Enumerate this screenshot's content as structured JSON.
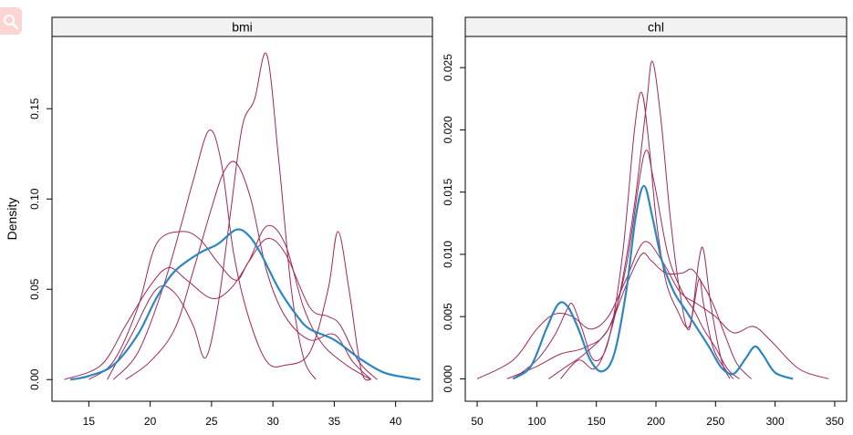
{
  "ylabel": "Density",
  "colors": {
    "observed": "#2e86c1",
    "imputed": "#a0285a",
    "strip_bg": "#f2f2f2",
    "frame": "#000000"
  },
  "chart_data": [
    {
      "type": "line",
      "panel": "bmi",
      "xlim": [
        12,
        43
      ],
      "ylim": [
        -0.012,
        0.19
      ],
      "x_ticks": [
        15,
        20,
        25,
        30,
        35,
        40
      ],
      "y_ticks": [
        0.0,
        0.05,
        0.1,
        0.15
      ],
      "y_tick_labels": [
        "0.00",
        "0.05",
        "0.10",
        "0.15"
      ],
      "observed": [
        [
          13.5,
          0
        ],
        [
          15,
          0.002
        ],
        [
          17,
          0.008
        ],
        [
          19,
          0.025
        ],
        [
          20.5,
          0.045
        ],
        [
          22,
          0.06
        ],
        [
          24,
          0.07
        ],
        [
          25.5,
          0.075
        ],
        [
          27,
          0.083
        ],
        [
          28,
          0.08
        ],
        [
          29,
          0.07
        ],
        [
          30.5,
          0.05
        ],
        [
          32,
          0.035
        ],
        [
          33,
          0.028
        ],
        [
          35,
          0.022
        ],
        [
          37,
          0.012
        ],
        [
          39,
          0.004
        ],
        [
          41,
          0.001
        ],
        [
          42,
          0
        ]
      ],
      "imputed": [
        [
          [
            13,
            0
          ],
          [
            16,
            0.008
          ],
          [
            18,
            0.03
          ],
          [
            20,
            0.052
          ],
          [
            21.5,
            0.062
          ],
          [
            23,
            0.055
          ],
          [
            25,
            0.045
          ],
          [
            26.5,
            0.05
          ],
          [
            28,
            0.065
          ],
          [
            29.5,
            0.085
          ],
          [
            31,
            0.075
          ],
          [
            32.5,
            0.04
          ],
          [
            34,
            0.02
          ],
          [
            36,
            0.008
          ],
          [
            38,
            0
          ]
        ],
        [
          [
            16.5,
            0
          ],
          [
            18.5,
            0.025
          ],
          [
            20.5,
            0.05
          ],
          [
            22,
            0.048
          ],
          [
            23.5,
            0.03
          ],
          [
            24.5,
            0.012
          ],
          [
            25.5,
            0.04
          ],
          [
            26.5,
            0.09
          ],
          [
            27.5,
            0.14
          ],
          [
            28.5,
            0.155
          ],
          [
            29.5,
            0.18
          ],
          [
            30.5,
            0.12
          ],
          [
            31.5,
            0.05
          ],
          [
            32.5,
            0.012
          ],
          [
            33.5,
            0
          ]
        ],
        [
          [
            15,
            0
          ],
          [
            17,
            0.01
          ],
          [
            19,
            0.04
          ],
          [
            20.5,
            0.075
          ],
          [
            22.5,
            0.082
          ],
          [
            24,
            0.078
          ],
          [
            25.5,
            0.065
          ],
          [
            27,
            0.055
          ],
          [
            28,
            0.065
          ],
          [
            29.5,
            0.078
          ],
          [
            31,
            0.07
          ],
          [
            33,
            0.04
          ],
          [
            34.5,
            0.035
          ],
          [
            35.5,
            0.03
          ],
          [
            37,
            0.01
          ],
          [
            38.5,
            0
          ]
        ],
        [
          [
            17,
            0
          ],
          [
            19,
            0.015
          ],
          [
            21,
            0.05
          ],
          [
            22.5,
            0.085
          ],
          [
            23.5,
            0.11
          ],
          [
            24.8,
            0.138
          ],
          [
            25.8,
            0.12
          ],
          [
            26.8,
            0.07
          ],
          [
            28,
            0.035
          ],
          [
            29.5,
            0.01
          ],
          [
            31,
            0.008
          ],
          [
            33,
            0.015
          ],
          [
            34.5,
            0.05
          ],
          [
            35.3,
            0.082
          ],
          [
            36.2,
            0.05
          ],
          [
            37.2,
            0.005
          ],
          [
            38,
            0
          ]
        ],
        [
          [
            18,
            0
          ],
          [
            20,
            0.01
          ],
          [
            22,
            0.028
          ],
          [
            23.5,
            0.06
          ],
          [
            25,
            0.095
          ],
          [
            26,
            0.115
          ],
          [
            27,
            0.12
          ],
          [
            28.2,
            0.1
          ],
          [
            29.5,
            0.06
          ],
          [
            31,
            0.035
          ],
          [
            33,
            0.022
          ],
          [
            35,
            0.025
          ],
          [
            36.5,
            0.01
          ],
          [
            38,
            0
          ]
        ]
      ]
    },
    {
      "type": "line",
      "panel": "chl",
      "xlim": [
        40,
        360
      ],
      "ylim": [
        -0.0018,
        0.0275
      ],
      "x_ticks": [
        50,
        100,
        150,
        200,
        250,
        300,
        350
      ],
      "y_ticks": [
        0.0,
        0.005,
        0.01,
        0.015,
        0.02,
        0.025
      ],
      "y_tick_labels": [
        "0.000",
        "0.005",
        "0.010",
        "0.015",
        "0.020",
        "0.025"
      ],
      "observed": [
        [
          80,
          0
        ],
        [
          95,
          0.001
        ],
        [
          108,
          0.004
        ],
        [
          118,
          0.006
        ],
        [
          126,
          0.0058
        ],
        [
          135,
          0.004
        ],
        [
          145,
          0.0015
        ],
        [
          155,
          0.0006
        ],
        [
          165,
          0.002
        ],
        [
          175,
          0.007
        ],
        [
          183,
          0.013
        ],
        [
          190,
          0.0155
        ],
        [
          197,
          0.013
        ],
        [
          205,
          0.0095
        ],
        [
          215,
          0.007
        ],
        [
          225,
          0.0055
        ],
        [
          235,
          0.004
        ],
        [
          245,
          0.0025
        ],
        [
          255,
          0.0009
        ],
        [
          265,
          0.0004
        ],
        [
          275,
          0.0016
        ],
        [
          283,
          0.0026
        ],
        [
          290,
          0.0019
        ],
        [
          300,
          0.0005
        ],
        [
          315,
          0
        ]
      ],
      "imputed": [
        [
          [
            50,
            0
          ],
          [
            80,
            0.0015
          ],
          [
            100,
            0.004
          ],
          [
            115,
            0.0052
          ],
          [
            130,
            0.005
          ],
          [
            145,
            0.004
          ],
          [
            160,
            0.005
          ],
          [
            175,
            0.008
          ],
          [
            190,
            0.011
          ],
          [
            205,
            0.0095
          ],
          [
            220,
            0.007
          ],
          [
            235,
            0.006
          ],
          [
            250,
            0.005
          ],
          [
            265,
            0.0037
          ],
          [
            282,
            0.0042
          ],
          [
            297,
            0.003
          ],
          [
            320,
            0.0008
          ],
          [
            345,
            0
          ]
        ],
        [
          [
            80,
            0
          ],
          [
            100,
            0.0015
          ],
          [
            115,
            0.0035
          ],
          [
            125,
            0.0055
          ],
          [
            130,
            0.006
          ],
          [
            138,
            0.004
          ],
          [
            148,
            0.0015
          ],
          [
            160,
            0.003
          ],
          [
            172,
            0.01
          ],
          [
            182,
            0.02
          ],
          [
            188,
            0.023
          ],
          [
            194,
            0.019
          ],
          [
            200,
            0.013
          ],
          [
            208,
            0.008
          ],
          [
            218,
            0.0055
          ],
          [
            228,
            0.0042
          ],
          [
            236,
            0.008
          ],
          [
            240,
            0.006
          ],
          [
            248,
            0.0025
          ],
          [
            258,
            0.0008
          ],
          [
            265,
            0
          ]
        ],
        [
          [
            120,
            0
          ],
          [
            135,
            0.0015
          ],
          [
            148,
            0.0008
          ],
          [
            158,
            0.0025
          ],
          [
            170,
            0.007
          ],
          [
            182,
            0.014
          ],
          [
            192,
            0.022
          ],
          [
            197,
            0.0255
          ],
          [
            204,
            0.021
          ],
          [
            212,
            0.013
          ],
          [
            220,
            0.007
          ],
          [
            228,
            0.004
          ],
          [
            236,
            0.0095
          ],
          [
            240,
            0.0103
          ],
          [
            246,
            0.006
          ],
          [
            255,
            0.0015
          ],
          [
            262,
            0
          ]
        ],
        [
          [
            75,
            0
          ],
          [
            100,
            0.001
          ],
          [
            120,
            0.002
          ],
          [
            140,
            0.0025
          ],
          [
            160,
            0.004
          ],
          [
            175,
            0.009
          ],
          [
            190,
            0.018
          ],
          [
            198,
            0.016
          ],
          [
            210,
            0.01
          ],
          [
            222,
            0.007
          ],
          [
            232,
            0.0055
          ],
          [
            240,
            0.004
          ],
          [
            250,
            0.0025
          ],
          [
            260,
            0.0008
          ],
          [
            270,
            0
          ]
        ],
        [
          [
            110,
            0
          ],
          [
            125,
            0.001
          ],
          [
            140,
            0.002
          ],
          [
            160,
            0.004
          ],
          [
            175,
            0.0075
          ],
          [
            188,
            0.01
          ],
          [
            196,
            0.0095
          ],
          [
            208,
            0.0085
          ],
          [
            222,
            0.0085
          ],
          [
            230,
            0.0088
          ],
          [
            238,
            0.0078
          ],
          [
            248,
            0.006
          ],
          [
            258,
            0.0035
          ],
          [
            268,
            0.0012
          ],
          [
            280,
            0
          ]
        ]
      ]
    }
  ]
}
